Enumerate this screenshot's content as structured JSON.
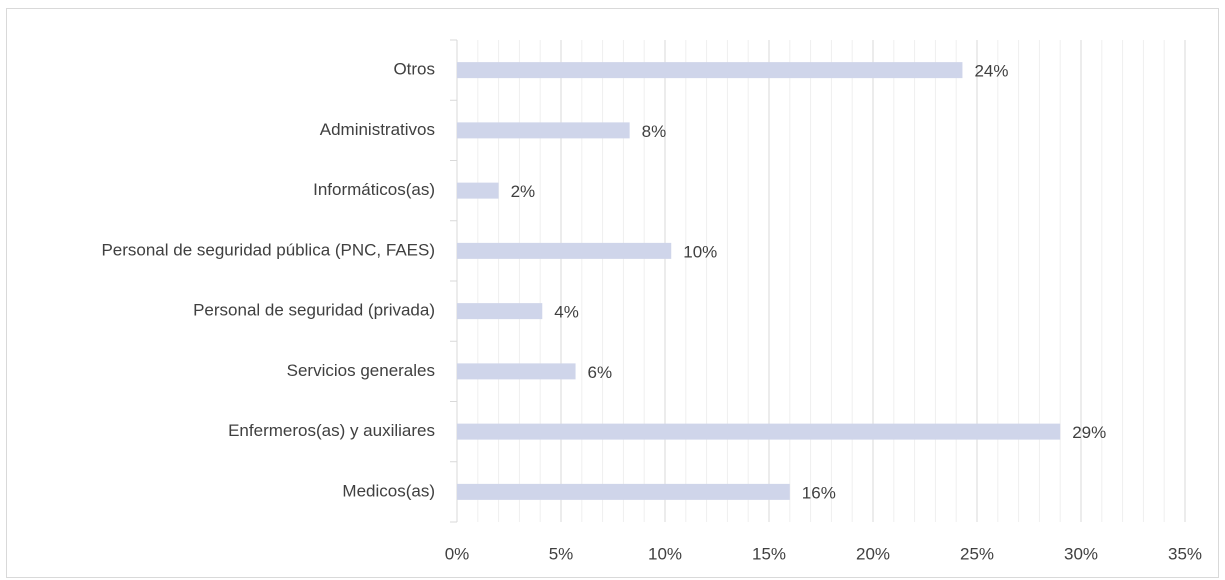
{
  "chart_data": {
    "type": "hbar",
    "categories": [
      "Otros",
      "Administrativos",
      "Informáticos(as)",
      "Personal de seguridad pública (PNC, FAES)",
      "Personal de seguridad (privada)",
      "Servicios generales",
      "Enfermeros(as) y auxiliares",
      "Medicos(as)"
    ],
    "values": [
      24.3,
      8.3,
      2.0,
      10.3,
      4.1,
      5.7,
      29.0,
      16.0
    ],
    "value_labels": [
      "24%",
      "8%",
      "2%",
      "10%",
      "4%",
      "6%",
      "29%",
      "16%"
    ],
    "color": "#cfd5ea",
    "xlim": [
      0,
      35
    ],
    "xticks": [
      {
        "value": 0,
        "label": "0%"
      },
      {
        "value": 5,
        "label": "5%"
      },
      {
        "value": 10,
        "label": "10%"
      },
      {
        "value": 15,
        "label": "15%"
      },
      {
        "value": 20,
        "label": "20%"
      },
      {
        "value": 25,
        "label": "25%"
      },
      {
        "value": 30,
        "label": "30%"
      },
      {
        "value": 35,
        "label": "35%"
      }
    ],
    "grid": true
  }
}
